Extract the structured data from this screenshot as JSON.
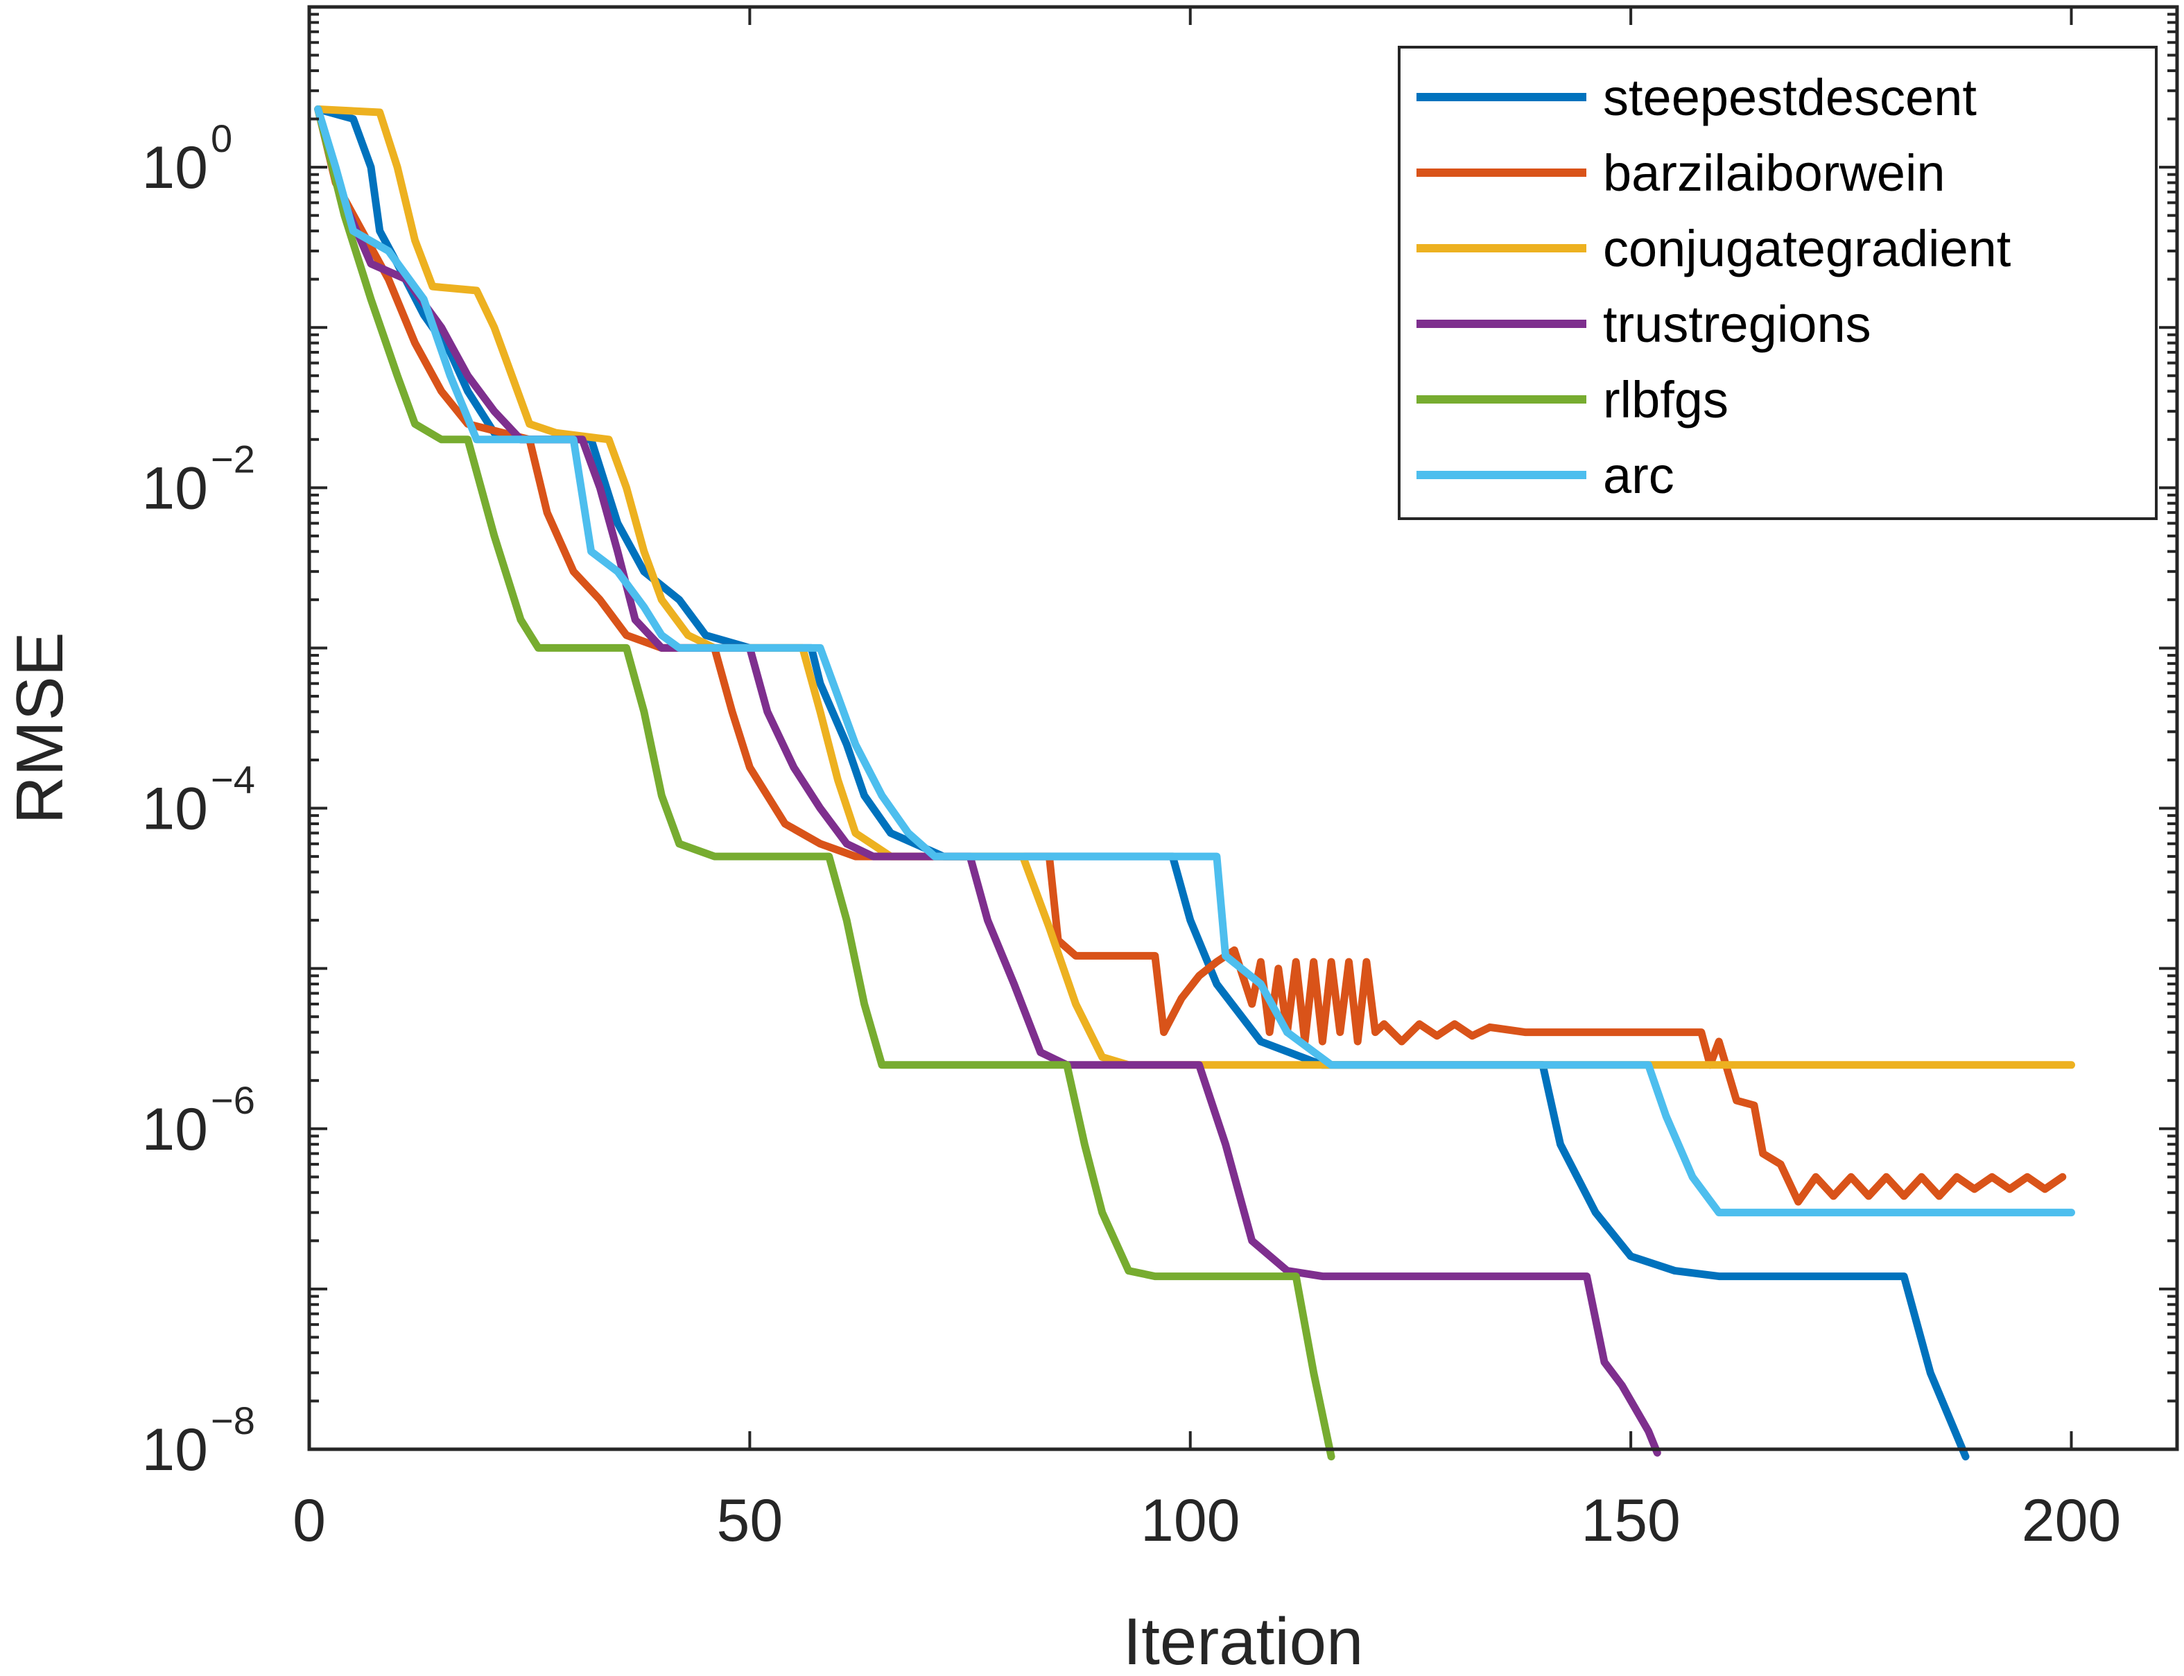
{
  "chart_data": {
    "type": "line",
    "xlabel": "Iteration",
    "ylabel": "RMSE",
    "xlim": [
      0,
      212
    ],
    "ylim_log10": [
      -8,
      1
    ],
    "y_scale": "log",
    "x_ticks": [
      "0",
      "50",
      "100",
      "150",
      "200"
    ],
    "y_ticks": [
      {
        "base": "10",
        "exp": "0"
      },
      {
        "base": "10",
        "exp": "−2"
      },
      {
        "base": "10",
        "exp": "−4"
      },
      {
        "base": "10",
        "exp": "−6"
      },
      {
        "base": "10",
        "exp": "−8"
      }
    ],
    "grid": false,
    "legend_position": "top-right",
    "series": [
      {
        "name": "steepestdescent",
        "color": "#0072BD",
        "points": [
          [
            1,
            2.3
          ],
          [
            5,
            2.0
          ],
          [
            7,
            1.0
          ],
          [
            8,
            0.4
          ],
          [
            10,
            0.25
          ],
          [
            13,
            0.12
          ],
          [
            16,
            0.07
          ],
          [
            18,
            0.04
          ],
          [
            21,
            0.022
          ],
          [
            24,
            0.02
          ],
          [
            32,
            0.02
          ],
          [
            35,
            0.006
          ],
          [
            38,
            0.003
          ],
          [
            42,
            0.002
          ],
          [
            45,
            0.0012
          ],
          [
            50,
            0.001
          ],
          [
            57,
            0.001
          ],
          [
            58,
            0.0006
          ],
          [
            61,
            0.00025
          ],
          [
            63,
            0.00012
          ],
          [
            66,
            7e-05
          ],
          [
            72,
            5e-05
          ],
          [
            98,
            5e-05
          ],
          [
            100,
            2e-05
          ],
          [
            103,
            8e-06
          ],
          [
            108,
            3.5e-06
          ],
          [
            115,
            2.5e-06
          ],
          [
            140,
            2.5e-06
          ],
          [
            142,
            8e-07
          ],
          [
            146,
            3e-07
          ],
          [
            150,
            1.6e-07
          ],
          [
            155,
            1.3e-07
          ],
          [
            160,
            1.2e-07
          ],
          [
            181,
            1.2e-07
          ],
          [
            184,
            3e-08
          ],
          [
            188,
            9e-09
          ]
        ]
      },
      {
        "name": "barzilaiborwein",
        "color": "#D95319",
        "points": [
          [
            1,
            2.3
          ],
          [
            3,
            0.8
          ],
          [
            6,
            0.4
          ],
          [
            9,
            0.2
          ],
          [
            12,
            0.08
          ],
          [
            15,
            0.04
          ],
          [
            18,
            0.025
          ],
          [
            25,
            0.02
          ],
          [
            27,
            0.007
          ],
          [
            30,
            0.003
          ],
          [
            33,
            0.002
          ],
          [
            36,
            0.0012
          ],
          [
            40,
            0.001
          ],
          [
            46,
            0.001
          ],
          [
            48,
            0.0004
          ],
          [
            50,
            0.00018
          ],
          [
            54,
            8e-05
          ],
          [
            58,
            6e-05
          ],
          [
            62,
            5e-05
          ],
          [
            84,
            5e-05
          ],
          [
            85,
            1.5e-05
          ],
          [
            87,
            1.2e-05
          ],
          [
            92,
            1.2e-05
          ],
          [
            96,
            1.2e-05
          ],
          [
            97,
            4e-06
          ],
          [
            99,
            6.5e-06
          ],
          [
            101,
            9e-06
          ],
          [
            103,
            1.1e-05
          ],
          [
            105,
            1.3e-05
          ],
          [
            107,
            6e-06
          ],
          [
            108,
            1.1e-05
          ],
          [
            109,
            4e-06
          ],
          [
            110,
            1e-05
          ],
          [
            111,
            4e-06
          ],
          [
            112,
            1.1e-05
          ],
          [
            113,
            3.5e-06
          ],
          [
            114,
            1.1e-05
          ],
          [
            115,
            3.5e-06
          ],
          [
            116,
            1.1e-05
          ],
          [
            117,
            4e-06
          ],
          [
            118,
            1.1e-05
          ],
          [
            119,
            3.5e-06
          ],
          [
            120,
            1.1e-05
          ],
          [
            121,
            4e-06
          ],
          [
            122,
            4.5e-06
          ],
          [
            124,
            3.5e-06
          ],
          [
            126,
            4.5e-06
          ],
          [
            128,
            3.8e-06
          ],
          [
            130,
            4.5e-06
          ],
          [
            132,
            3.8e-06
          ],
          [
            134,
            4.3e-06
          ],
          [
            138,
            4e-06
          ],
          [
            145,
            4e-06
          ],
          [
            152,
            4e-06
          ],
          [
            158,
            4e-06
          ],
          [
            159,
            2.5e-06
          ],
          [
            160,
            3.5e-06
          ],
          [
            162,
            1.5e-06
          ],
          [
            164,
            1.4e-06
          ],
          [
            165,
            7e-07
          ],
          [
            167,
            6e-07
          ],
          [
            169,
            3.5e-07
          ],
          [
            171,
            5e-07
          ],
          [
            173,
            3.8e-07
          ],
          [
            175,
            5e-07
          ],
          [
            177,
            3.8e-07
          ],
          [
            179,
            5e-07
          ],
          [
            181,
            3.8e-07
          ],
          [
            183,
            5e-07
          ],
          [
            185,
            3.8e-07
          ],
          [
            187,
            5e-07
          ],
          [
            189,
            4.2e-07
          ],
          [
            191,
            5e-07
          ],
          [
            193,
            4.2e-07
          ],
          [
            195,
            5e-07
          ],
          [
            197,
            4.2e-07
          ],
          [
            199,
            5e-07
          ]
        ]
      },
      {
        "name": "conjugategradient",
        "color": "#EDB120",
        "points": [
          [
            1,
            2.3
          ],
          [
            8,
            2.2
          ],
          [
            10,
            1.0
          ],
          [
            12,
            0.35
          ],
          [
            14,
            0.18
          ],
          [
            19,
            0.17
          ],
          [
            21,
            0.1
          ],
          [
            23,
            0.05
          ],
          [
            25,
            0.025
          ],
          [
            28,
            0.022
          ],
          [
            34,
            0.02
          ],
          [
            36,
            0.01
          ],
          [
            38,
            0.004
          ],
          [
            40,
            0.002
          ],
          [
            43,
            0.0012
          ],
          [
            46,
            0.001
          ],
          [
            56,
            0.001
          ],
          [
            58,
            0.0004
          ],
          [
            60,
            0.00015
          ],
          [
            62,
            7e-05
          ],
          [
            66,
            5e-05
          ],
          [
            81,
            5e-05
          ],
          [
            84,
            1.8e-05
          ],
          [
            87,
            6e-06
          ],
          [
            90,
            2.8e-06
          ],
          [
            93,
            2.5e-06
          ],
          [
            200,
            2.5e-06
          ]
        ]
      },
      {
        "name": "trustregions",
        "color": "#7E2F8E",
        "points": [
          [
            1,
            2.3
          ],
          [
            4,
            0.6
          ],
          [
            7,
            0.25
          ],
          [
            11,
            0.2
          ],
          [
            15,
            0.1
          ],
          [
            18,
            0.05
          ],
          [
            21,
            0.03
          ],
          [
            24,
            0.02
          ],
          [
            31,
            0.02
          ],
          [
            33,
            0.01
          ],
          [
            35,
            0.004
          ],
          [
            37,
            0.0015
          ],
          [
            40,
            0.001
          ],
          [
            50,
            0.001
          ],
          [
            52,
            0.0004
          ],
          [
            55,
            0.00018
          ],
          [
            58,
            0.0001
          ],
          [
            61,
            6e-05
          ],
          [
            64,
            5e-05
          ],
          [
            75,
            5e-05
          ],
          [
            77,
            2e-05
          ],
          [
            80,
            8e-06
          ],
          [
            83,
            3e-06
          ],
          [
            86,
            2.5e-06
          ],
          [
            101,
            2.5e-06
          ],
          [
            104,
            8e-07
          ],
          [
            107,
            2e-07
          ],
          [
            111,
            1.3e-07
          ],
          [
            115,
            1.2e-07
          ],
          [
            145,
            1.2e-07
          ],
          [
            147,
            3.5e-08
          ],
          [
            149,
            2.5e-08
          ],
          [
            152,
            1.3e-08
          ],
          [
            153,
            9.5e-09
          ]
        ]
      },
      {
        "name": "rlbfgs",
        "color": "#77AC30",
        "points": [
          [
            1,
            2.3
          ],
          [
            4,
            0.5
          ],
          [
            7,
            0.15
          ],
          [
            10,
            0.05
          ],
          [
            12,
            0.025
          ],
          [
            15,
            0.02
          ],
          [
            18,
            0.02
          ],
          [
            21,
            0.005
          ],
          [
            24,
            0.0015
          ],
          [
            26,
            0.001
          ],
          [
            36,
            0.001
          ],
          [
            38,
            0.0004
          ],
          [
            40,
            0.00012
          ],
          [
            42,
            6e-05
          ],
          [
            46,
            5e-05
          ],
          [
            59,
            5e-05
          ],
          [
            61,
            2e-05
          ],
          [
            63,
            6e-06
          ],
          [
            65,
            2.5e-06
          ],
          [
            67,
            2.5e-06
          ],
          [
            86,
            2.5e-06
          ],
          [
            88,
            8e-07
          ],
          [
            90,
            3e-07
          ],
          [
            93,
            1.3e-07
          ],
          [
            96,
            1.2e-07
          ],
          [
            112,
            1.2e-07
          ],
          [
            114,
            3e-08
          ],
          [
            116,
            9e-09
          ]
        ]
      },
      {
        "name": "arc",
        "color": "#4DBEEE",
        "points": [
          [
            1,
            2.3
          ],
          [
            3,
            1.0
          ],
          [
            5,
            0.4
          ],
          [
            9,
            0.3
          ],
          [
            13,
            0.15
          ],
          [
            16,
            0.05
          ],
          [
            19,
            0.02
          ],
          [
            30,
            0.02
          ],
          [
            32,
            0.004
          ],
          [
            35,
            0.003
          ],
          [
            38,
            0.0018
          ],
          [
            40,
            0.0012
          ],
          [
            42,
            0.001
          ],
          [
            58,
            0.001
          ],
          [
            60,
            0.0005
          ],
          [
            62,
            0.00025
          ],
          [
            65,
            0.00012
          ],
          [
            68,
            7e-05
          ],
          [
            71,
            5e-05
          ],
          [
            103,
            5e-05
          ],
          [
            104,
            1.2e-05
          ],
          [
            108,
            8e-06
          ],
          [
            111,
            4e-06
          ],
          [
            116,
            2.5e-06
          ],
          [
            152,
            2.5e-06
          ],
          [
            154,
            1.2e-06
          ],
          [
            157,
            5e-07
          ],
          [
            160,
            3e-07
          ],
          [
            200,
            3e-07
          ]
        ]
      }
    ]
  }
}
